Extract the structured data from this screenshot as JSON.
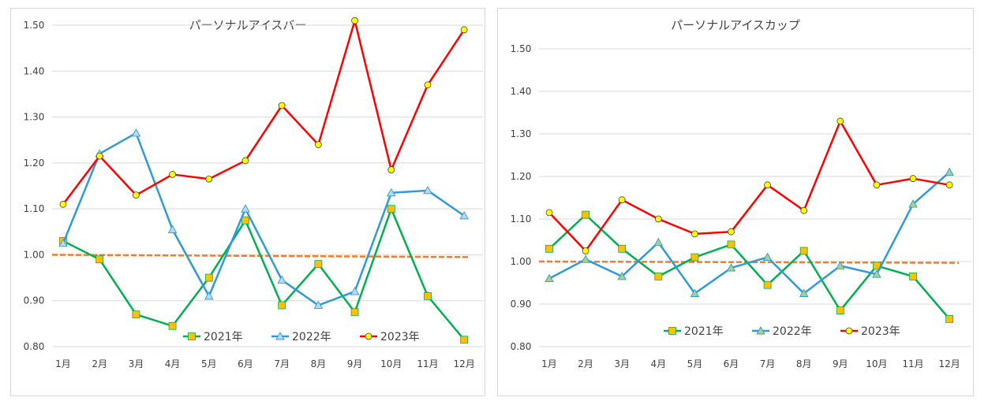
{
  "chart_data": [
    {
      "type": "line",
      "title": "パーソナルアイスバー",
      "categories": [
        "1月",
        "2月",
        "3月",
        "4月",
        "5月",
        "6月",
        "7月",
        "8月",
        "9月",
        "10月",
        "11月",
        "12月"
      ],
      "ylim": [
        0.8,
        1.5
      ],
      "yticks": [
        "0.80",
        "0.90",
        "1.00",
        "1.10",
        "1.20",
        "1.30",
        "1.40",
        "1.50"
      ],
      "grid": true,
      "legend_position": "bottom-inside",
      "series": [
        {
          "name": "2021年",
          "color": "#00b050",
          "marker": "square",
          "marker_fill": "#ffc000",
          "values": [
            1.03,
            0.99,
            0.87,
            0.845,
            0.95,
            1.075,
            0.89,
            0.98,
            0.875,
            1.1,
            0.91,
            0.815
          ]
        },
        {
          "name": "2022年",
          "color": "#2e9bd6",
          "marker": "triangle",
          "marker_fill": "#bdd7ee",
          "values": [
            1.025,
            1.22,
            1.265,
            1.055,
            0.91,
            1.1,
            0.945,
            0.89,
            0.92,
            1.135,
            1.14,
            1.085
          ]
        },
        {
          "name": "2023年",
          "color": "#ff0000",
          "marker": "circle",
          "marker_fill": "#ffff00",
          "values": [
            1.11,
            1.215,
            1.13,
            1.175,
            1.165,
            1.205,
            1.325,
            1.24,
            1.51,
            1.185,
            1.37,
            1.49
          ]
        }
      ],
      "trend": {
        "color": "#ed7d31",
        "start": 1.0,
        "end": 0.995
      }
    },
    {
      "type": "line",
      "title": "パーソナルアイスカップ",
      "categories": [
        "1月",
        "2月",
        "3月",
        "4月",
        "5月",
        "6月",
        "7月",
        "8月",
        "9月",
        "10月",
        "11月",
        "12月"
      ],
      "ylim": [
        0.8,
        1.5
      ],
      "yticks": [
        "0.80",
        "0.90",
        "1.00",
        "1.10",
        "1.20",
        "1.30",
        "1.40",
        "1.50"
      ],
      "grid": true,
      "legend_position": "bottom-inside",
      "series": [
        {
          "name": "2021年",
          "color": "#00b050",
          "marker": "square",
          "marker_fill": "#ffc000",
          "values": [
            1.03,
            1.11,
            1.03,
            0.965,
            1.01,
            1.04,
            0.945,
            1.025,
            0.885,
            0.99,
            0.965,
            0.865
          ]
        },
        {
          "name": "2022年",
          "color": "#2e9bd6",
          "marker": "triangle",
          "marker_fill": "#a9d18e",
          "values": [
            0.96,
            1.005,
            0.965,
            1.045,
            0.925,
            0.985,
            1.01,
            0.925,
            0.99,
            0.97,
            1.135,
            1.21
          ]
        },
        {
          "name": "2023年",
          "color": "#ff0000",
          "marker": "circle",
          "marker_fill": "#ffff00",
          "values": [
            1.115,
            1.025,
            1.145,
            1.1,
            1.065,
            1.07,
            1.18,
            1.12,
            1.33,
            1.18,
            1.195,
            1.18
          ]
        }
      ],
      "trend": {
        "color": "#ed7d31",
        "start": 1.0,
        "end": 0.997
      }
    }
  ]
}
